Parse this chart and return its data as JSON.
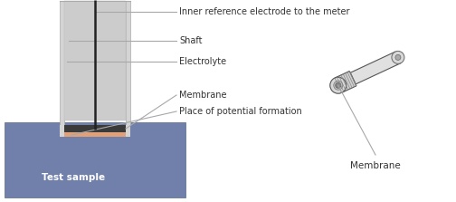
{
  "bg_color": "#ffffff",
  "test_sample_color": "#7080aa",
  "outer_tube_fill": "#d4d4d4",
  "inner_tube_fill": "#e2e2e2",
  "electrolyte_fill": "#cccccc",
  "membrane_dark": "#3a3a3a",
  "membrane_salmon": "#e0a07a",
  "shaft_color": "#222222",
  "line_color": "#a8a8a8",
  "text_color": "#333333",
  "label_inner_ref": "Inner reference electrode to the meter",
  "label_shaft": "Shaft",
  "label_electrolyte": "Electrolyte",
  "label_membrane": "Membrane",
  "label_place": "Place of potential formation",
  "label_test_sample": "Test sample",
  "label_membrane2": "Membrane"
}
